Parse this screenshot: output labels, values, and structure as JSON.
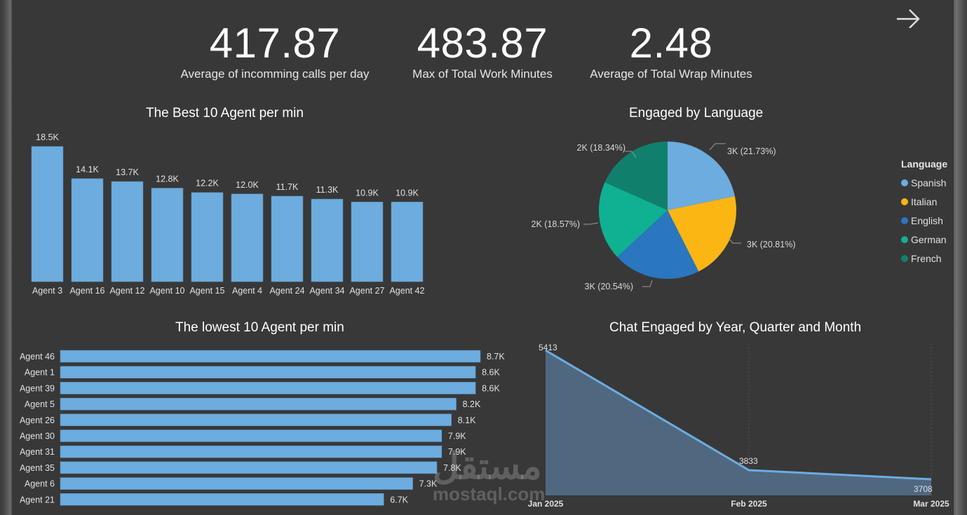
{
  "kpis": [
    {
      "value": "417.87",
      "label": "Average of incomming calls per day"
    },
    {
      "value": "483.87",
      "label": "Max of Total Work Minutes"
    },
    {
      "value": "2.48",
      "label": "Average of Total Wrap Minutes"
    }
  ],
  "nav": {
    "icon": "arrow-right-icon"
  },
  "colors": {
    "background": "#383838",
    "bar": "#6cacde",
    "line": "#6cacde",
    "area": "#4f6880",
    "spanish": "#6cacde",
    "italian": "#fbb614",
    "english": "#2a76bf",
    "german": "#10b093",
    "french": "#10806c"
  },
  "watermark": {
    "arabic": "مستقل",
    "latin": "mostaql.com"
  },
  "chart_data": [
    {
      "type": "bar",
      "title": "The Best 10 Agent per min",
      "categories": [
        "Agent 3",
        "Agent 16",
        "Agent 12",
        "Agent 10",
        "Agent 15",
        "Agent 4",
        "Agent 24",
        "Agent 34",
        "Agent 27",
        "Agent 42"
      ],
      "values": [
        18500,
        14100,
        13700,
        12800,
        12200,
        12000,
        11700,
        11300,
        10900,
        10900
      ],
      "labels": [
        "18.5K",
        "14.1K",
        "13.7K",
        "12.8K",
        "12.2K",
        "12.0K",
        "11.7K",
        "11.3K",
        "10.9K",
        "10.9K"
      ],
      "xlabel": "",
      "ylabel": "",
      "grid": false
    },
    {
      "type": "pie",
      "title": "Engaged by Language",
      "legend_title": "Language",
      "legend_position": "right",
      "slices": [
        {
          "name": "Spanish",
          "pct": 21.73,
          "label": "3K (21.73%)"
        },
        {
          "name": "Italian",
          "pct": 20.81,
          "label": "3K (20.81%)"
        },
        {
          "name": "English",
          "pct": 20.54,
          "label": "3K (20.54%)"
        },
        {
          "name": "German",
          "pct": 18.57,
          "label": "2K (18.57%)"
        },
        {
          "name": "French",
          "pct": 18.34,
          "label": "2K (18.34%)"
        }
      ]
    },
    {
      "type": "bar",
      "orientation": "horizontal",
      "title": "The lowest 10 Agent per min",
      "categories": [
        "Agent 46",
        "Agent 1",
        "Agent 39",
        "Agent 5",
        "Agent 26",
        "Agent 30",
        "Agent 31",
        "Agent 35",
        "Agent 6",
        "Agent 21"
      ],
      "values": [
        8700,
        8600,
        8600,
        8200,
        8100,
        7900,
        7900,
        7800,
        7300,
        6700
      ],
      "labels": [
        "8.7K",
        "8.6K",
        "8.6K",
        "8.2K",
        "8.1K",
        "7.9K",
        "7.9K",
        "7.8K",
        "7.3K",
        "6.7K"
      ],
      "grid": false
    },
    {
      "type": "area",
      "title": "Chat Engaged by Year, Quarter and Month",
      "x": [
        "Jan 2025",
        "Feb 2025",
        "Mar 2025"
      ],
      "values": [
        5413,
        3833,
        3708
      ],
      "labels": [
        "5413",
        "3833",
        "3708"
      ],
      "grid": "vertical dotted"
    }
  ]
}
